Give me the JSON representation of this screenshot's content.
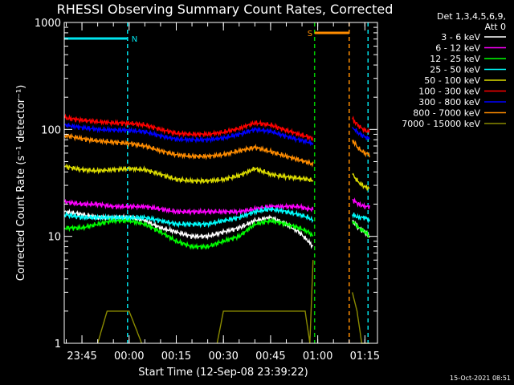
{
  "chart_data": {
    "type": "line",
    "title": "RHESSI Observing Summary Count Rates, Corrected",
    "xlabel": "Start Time (12-Sep-08 23:39:22)",
    "ylabel": "Corrected Count Rate (s⁻¹ detector⁻¹)",
    "x_start": "23:39:22",
    "x_end": "01:19:00",
    "xticks": [
      "23:45",
      "00:00",
      "00:15",
      "00:30",
      "00:45",
      "01:00",
      "01:15"
    ],
    "yscale": "log",
    "ylim": [
      1,
      1000
    ],
    "yticks": [
      "1",
      "10",
      "100",
      "1000"
    ],
    "legend_header": [
      "Det 1,3,4,5,6,9,",
      "Att 0"
    ],
    "legend_position": "right",
    "timestamp": "15-Oct-2021 08:51",
    "flags": [
      {
        "label": "N",
        "color": "#00e5ee",
        "start": "23:39:22",
        "end": "23:59:30"
      },
      {
        "label": "S",
        "color": "#ff8c00",
        "start": "00:59:00",
        "end": "01:10:00"
      }
    ],
    "markers": [
      {
        "time": "23:59:30",
        "color": "#00e5ee"
      },
      {
        "time": "00:59:00",
        "color": "#00cc00"
      },
      {
        "time": "01:10:00",
        "color": "#ff8c00"
      },
      {
        "time": "01:16:00",
        "color": "#00e5ee"
      }
    ],
    "series": [
      {
        "name": "3 - 6 keV",
        "color": "#ffffff",
        "times": [
          "23:39:30",
          "23:45",
          "23:50",
          "23:55",
          "00:00",
          "00:05",
          "00:10",
          "00:15",
          "00:20",
          "00:25",
          "00:30",
          "00:35",
          "00:40",
          "00:45",
          "00:50",
          "00:54",
          "00:57",
          "00:58:30",
          "01:11",
          "01:13",
          "01:15",
          "01:16:30"
        ],
        "values": [
          17,
          16,
          15,
          15,
          15,
          14,
          12,
          11,
          10,
          10,
          11,
          12,
          14,
          15,
          13,
          11,
          9,
          8,
          14,
          12,
          11,
          10
        ]
      },
      {
        "name": "6 - 12 keV",
        "color": "#ff00ff",
        "times": [
          "23:39:30",
          "23:45",
          "23:50",
          "23:55",
          "00:00",
          "00:05",
          "00:10",
          "00:15",
          "00:20",
          "00:25",
          "00:30",
          "00:35",
          "00:40",
          "00:45",
          "00:50",
          "00:54",
          "00:57",
          "00:58:30",
          "01:11",
          "01:13",
          "01:15",
          "01:16:30"
        ],
        "values": [
          21,
          20,
          20,
          19,
          19,
          19,
          18,
          17,
          17,
          17,
          17,
          17,
          18,
          19,
          19,
          19,
          18,
          18,
          22,
          20,
          19,
          19
        ]
      },
      {
        "name": "12 - 25 keV",
        "color": "#00ff00",
        "times": [
          "23:39:30",
          "23:45",
          "23:50",
          "23:55",
          "00:00",
          "00:05",
          "00:10",
          "00:15",
          "00:20",
          "00:25",
          "00:30",
          "00:35",
          "00:40",
          "00:45",
          "00:50",
          "00:54",
          "00:57",
          "00:58:30",
          "01:11",
          "01:13",
          "01:15",
          "01:16:30"
        ],
        "values": [
          12,
          12,
          13,
          14,
          14,
          13,
          11,
          9,
          8,
          8,
          9,
          10,
          13,
          14,
          13,
          12,
          11,
          10,
          14,
          12,
          11,
          10
        ]
      },
      {
        "name": "25 - 50 keV",
        "color": "#00ffff",
        "times": [
          "23:39:30",
          "23:45",
          "23:50",
          "23:55",
          "00:00",
          "00:05",
          "00:10",
          "00:15",
          "00:20",
          "00:25",
          "00:30",
          "00:35",
          "00:40",
          "00:45",
          "00:50",
          "00:54",
          "00:57",
          "00:58:30",
          "01:11",
          "01:13",
          "01:15",
          "01:16:30"
        ],
        "values": [
          16,
          15,
          15,
          15,
          15,
          15,
          14,
          13,
          13,
          13,
          14,
          15,
          17,
          18,
          17,
          16,
          15,
          14,
          16,
          15,
          15,
          14
        ]
      },
      {
        "name": "50 - 100 keV",
        "color": "#dddd00",
        "times": [
          "23:39:30",
          "23:45",
          "23:50",
          "23:55",
          "00:00",
          "00:05",
          "00:10",
          "00:15",
          "00:20",
          "00:25",
          "00:30",
          "00:35",
          "00:40",
          "00:45",
          "00:50",
          "00:54",
          "00:57",
          "00:58:30",
          "01:11",
          "01:13",
          "01:15",
          "01:16:30"
        ],
        "values": [
          45,
          42,
          41,
          42,
          43,
          42,
          38,
          34,
          33,
          33,
          34,
          37,
          43,
          38,
          36,
          35,
          34,
          33,
          38,
          32,
          29,
          28
        ]
      },
      {
        "name": "100 - 300 keV",
        "color": "#ff0000",
        "times": [
          "23:39:30",
          "23:45",
          "23:50",
          "23:55",
          "00:00",
          "00:05",
          "00:10",
          "00:15",
          "00:20",
          "00:25",
          "00:30",
          "00:35",
          "00:40",
          "00:45",
          "00:50",
          "00:54",
          "00:57",
          "00:58:30",
          "01:11",
          "01:13",
          "01:15",
          "01:16:30"
        ],
        "values": [
          128,
          122,
          118,
          115,
          114,
          110,
          100,
          92,
          90,
          90,
          94,
          102,
          115,
          110,
          98,
          90,
          85,
          82,
          125,
          108,
          98,
          95
        ]
      },
      {
        "name": "300 - 800 keV",
        "color": "#0000ff",
        "times": [
          "23:39:30",
          "23:45",
          "23:50",
          "23:55",
          "00:00",
          "00:05",
          "00:10",
          "00:15",
          "00:20",
          "00:25",
          "00:30",
          "00:35",
          "00:40",
          "00:45",
          "00:50",
          "00:54",
          "00:57",
          "00:58:30",
          "01:11",
          "01:13",
          "01:15",
          "01:16:30"
        ],
        "values": [
          110,
          104,
          100,
          99,
          98,
          95,
          87,
          81,
          80,
          80,
          83,
          90,
          100,
          96,
          86,
          80,
          76,
          74,
          105,
          92,
          85,
          82
        ]
      },
      {
        "name": "800 - 7000 keV",
        "color": "#ff8c00",
        "times": [
          "23:39:30",
          "23:45",
          "23:50",
          "23:55",
          "00:00",
          "00:05",
          "00:10",
          "00:15",
          "00:20",
          "00:25",
          "00:30",
          "00:35",
          "00:40",
          "00:45",
          "00:50",
          "00:54",
          "00:57",
          "00:58:30",
          "01:11",
          "01:13",
          "01:15",
          "01:16:30"
        ],
        "values": [
          88,
          82,
          78,
          76,
          74,
          70,
          63,
          58,
          56,
          56,
          58,
          63,
          68,
          62,
          56,
          52,
          49,
          47,
          80,
          66,
          60,
          58
        ]
      },
      {
        "name": "7000 - 15000 keV",
        "color": "#8b8b00",
        "times": [
          "23:39:30",
          "23:50",
          "23:53",
          "23:56",
          "23:58",
          "00:00",
          "00:04",
          "00:28",
          "00:30",
          "00:35",
          "00:40",
          "00:43",
          "00:45",
          "00:49",
          "00:52",
          "00:56",
          "00:57:30",
          "00:58:30",
          "01:11",
          "01:12:30",
          "01:14",
          "01:16:30"
        ],
        "values": [
          1,
          1,
          2,
          2,
          2,
          2,
          1,
          1,
          2,
          2,
          2,
          2,
          2,
          2,
          2,
          2,
          1,
          6,
          3,
          2,
          1,
          1
        ]
      }
    ]
  }
}
